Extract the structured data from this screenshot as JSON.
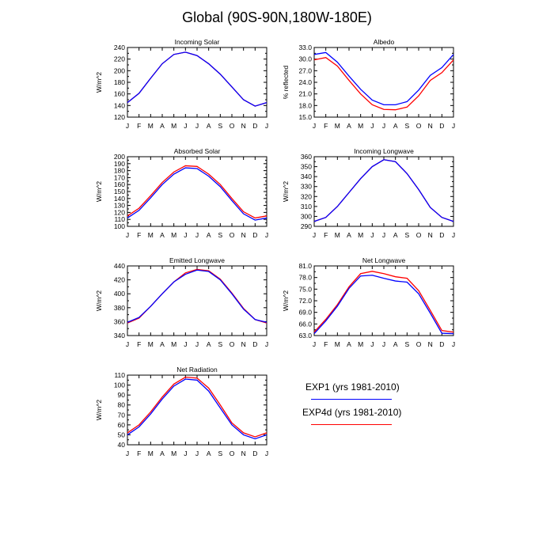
{
  "title": "Global (90S-90N,180W-180E)",
  "months": [
    "J",
    "F",
    "M",
    "A",
    "M",
    "J",
    "J",
    "A",
    "S",
    "O",
    "N",
    "D",
    "J"
  ],
  "series_colors": {
    "EXP1 (yrs 1981-2010)": "#0000ff",
    "EXP4d (yrs 1981-2010)": "#ff0000"
  },
  "legend": [
    {
      "label": "EXP1 (yrs 1981-2010)",
      "color": "#0000ff"
    },
    {
      "label": "EXP4d (yrs 1981-2010)",
      "color": "#ff0000"
    }
  ],
  "chart_data": [
    {
      "type": "line",
      "title": "Incoming Solar",
      "ylabel": "W/m^2",
      "ylim": [
        120,
        240
      ],
      "yticks": [
        "120",
        "140",
        "160",
        "180",
        "200",
        "220",
        "240"
      ],
      "series": [
        {
          "name": "EXP1 (yrs 1981-2010)",
          "values": [
            145,
            161,
            187,
            212,
            228,
            232,
            226,
            212,
            194,
            172,
            150,
            139,
            145
          ]
        },
        {
          "name": "EXP4d (yrs 1981-2010)",
          "values": [
            145,
            161,
            187,
            212,
            228,
            232,
            226,
            212,
            194,
            172,
            150,
            139,
            145
          ]
        }
      ]
    },
    {
      "type": "line",
      "title": "Albedo",
      "ylabel": "% reflected",
      "ylim": [
        15,
        33
      ],
      "yticks": [
        "15.0",
        "18.0",
        "21.0",
        "24.0",
        "27.0",
        "30.0",
        "33.0"
      ],
      "series": [
        {
          "name": "EXP1 (yrs 1981-2010)",
          "values": [
            31.2,
            31.7,
            29.2,
            25.6,
            22.2,
            19.4,
            18.2,
            18.2,
            19.0,
            22.0,
            25.8,
            27.8,
            31.2
          ]
        },
        {
          "name": "EXP4d (yrs 1981-2010)",
          "values": [
            29.8,
            30.4,
            28.2,
            24.5,
            21.0,
            18.2,
            17.0,
            16.9,
            17.6,
            20.5,
            24.5,
            26.5,
            29.8
          ]
        }
      ]
    },
    {
      "type": "line",
      "title": "Absorbed Solar",
      "ylabel": "W/m^2",
      "ylim": [
        100,
        200
      ],
      "yticks": [
        "100",
        "110",
        "120",
        "130",
        "140",
        "150",
        "160",
        "170",
        "180",
        "190",
        "200"
      ],
      "series": [
        {
          "name": "EXP1 (yrs 1981-2010)",
          "values": [
            112,
            123,
            141,
            160,
            175,
            184,
            183,
            172,
            157,
            137,
            118,
            109,
            112
          ]
        },
        {
          "name": "EXP4d (yrs 1981-2010)",
          "values": [
            115,
            126,
            144,
            163,
            178,
            187,
            186,
            175,
            160,
            140,
            121,
            112,
            115
          ]
        }
      ]
    },
    {
      "type": "line",
      "title": "Incoming Longwave",
      "ylabel": "W/m^2",
      "ylim": [
        290,
        360
      ],
      "yticks": [
        "290",
        "300",
        "310",
        "320",
        "330",
        "340",
        "350",
        "360"
      ],
      "series": [
        {
          "name": "EXP1 (yrs 1981-2010)",
          "values": [
            295,
            299,
            310,
            324,
            338,
            350,
            357,
            355,
            343,
            327,
            309,
            299,
            295
          ]
        },
        {
          "name": "EXP4d (yrs 1981-2010)",
          "values": [
            295,
            299,
            310,
            324,
            338,
            350,
            357,
            355,
            343,
            327,
            309,
            299,
            295
          ]
        }
      ]
    },
    {
      "type": "line",
      "title": "Emitted Longwave",
      "ylabel": "W/m^2",
      "ylim": [
        340,
        440
      ],
      "yticks": [
        "340",
        "360",
        "380",
        "400",
        "420",
        "440"
      ],
      "series": [
        {
          "name": "EXP1 (yrs 1981-2010)",
          "values": [
            359,
            366,
            382,
            400,
            417,
            428,
            434,
            432,
            420,
            400,
            378,
            363,
            359
          ]
        },
        {
          "name": "EXP4d (yrs 1981-2010)",
          "values": [
            358,
            365,
            382,
            400,
            417,
            430,
            435,
            433,
            421,
            401,
            379,
            363,
            358
          ]
        }
      ]
    },
    {
      "type": "line",
      "title": "Net Longwave",
      "ylabel": "W/m^2",
      "ylim": [
        63,
        81
      ],
      "yticks": [
        "63.0",
        "66.0",
        "69.0",
        "72.0",
        "75.0",
        "78.0",
        "81.0"
      ],
      "series": [
        {
          "name": "EXP1 (yrs 1981-2010)",
          "values": [
            63.5,
            66.8,
            70.6,
            75.2,
            78.4,
            78.6,
            77.8,
            77.1,
            76.8,
            73.8,
            68.8,
            63.6,
            63.5
          ]
        },
        {
          "name": "EXP4d (yrs 1981-2010)",
          "values": [
            63.9,
            67.2,
            71.0,
            75.6,
            79.0,
            79.6,
            79.0,
            78.2,
            77.8,
            74.6,
            69.5,
            64.3,
            63.9
          ]
        }
      ]
    },
    {
      "type": "line",
      "title": "Net Radiation",
      "ylabel": "W/m^2",
      "ylim": [
        40,
        110
      ],
      "yticks": [
        "40",
        "50",
        "60",
        "70",
        "80",
        "90",
        "100",
        "110"
      ],
      "series": [
        {
          "name": "EXP1 (yrs 1981-2010)",
          "values": [
            50,
            58,
            71,
            86,
            99,
            106,
            105,
            94,
            77,
            60,
            50,
            46,
            50
          ]
        },
        {
          "name": "EXP4d (yrs 1981-2010)",
          "values": [
            52,
            60,
            73,
            88,
            101,
            108,
            107,
            97,
            80,
            62,
            52,
            48,
            52
          ]
        }
      ]
    }
  ]
}
